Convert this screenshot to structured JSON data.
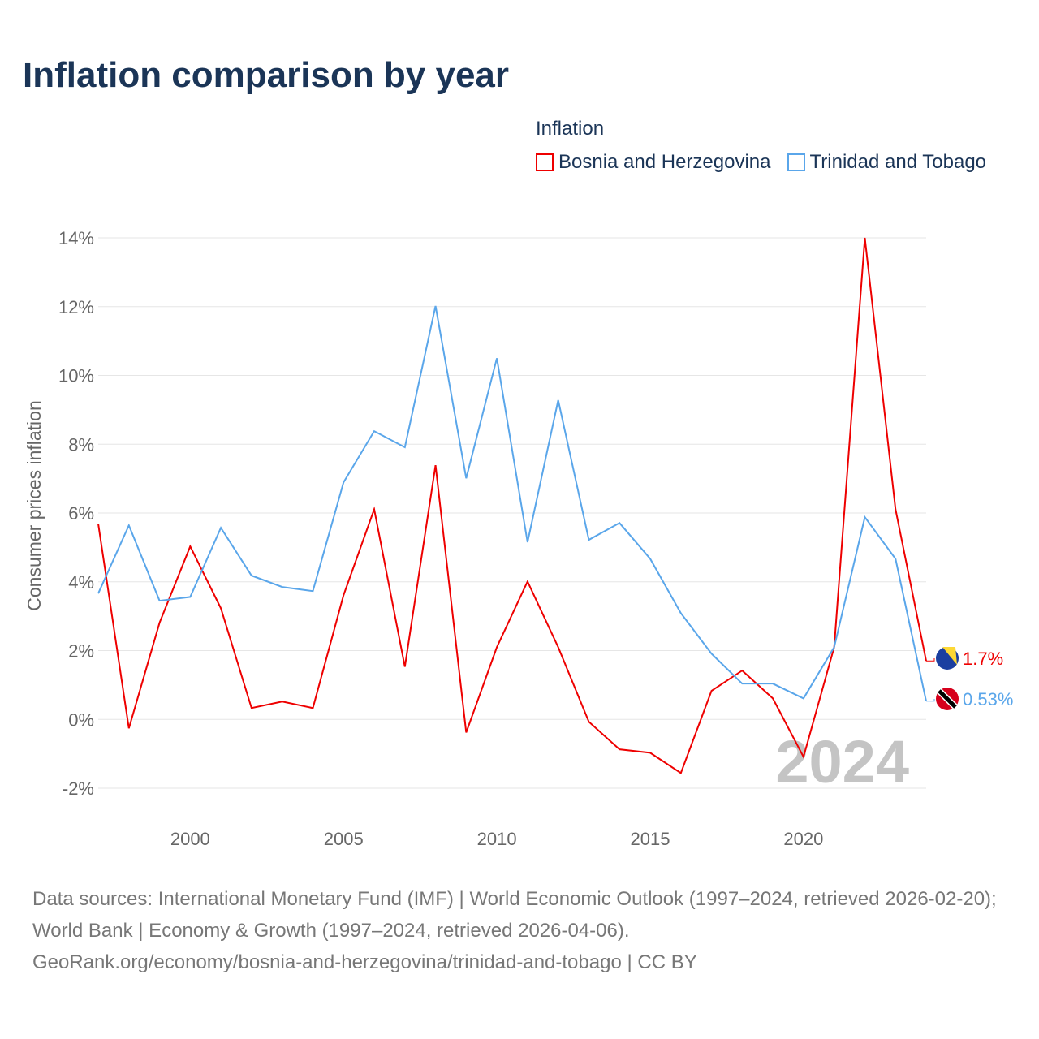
{
  "title": "Inflation comparison by year",
  "legend_title": "Inflation",
  "footer": {
    "sources": "Data sources: International Monetary Fund (IMF) | World Economic Outlook (1997–2024, retrieved 2026-02-20); World Bank | Economy & Growth (1997–2024, retrieved 2026-04-06).",
    "credit": "GeoRank.org/economy/bosnia-and-herzegovina/trinidad-and-tobago | CC BY"
  },
  "chart_data": {
    "type": "line",
    "title": "Inflation comparison by year",
    "xlabel": "",
    "ylabel": "Consumer prices inflation",
    "xlim": [
      1997,
      2024
    ],
    "ylim": [
      -2,
      14
    ],
    "x_ticks": [
      2000,
      2005,
      2010,
      2015,
      2020
    ],
    "y_ticks": [
      -2,
      0,
      2,
      4,
      6,
      8,
      10,
      12,
      14
    ],
    "y_tick_labels": [
      "-2%",
      "0%",
      "2%",
      "4%",
      "6%",
      "8%",
      "10%",
      "12%",
      "14%"
    ],
    "grid": true,
    "legend": "top-right",
    "year_watermark": "2024",
    "x": [
      1997,
      1998,
      1999,
      2000,
      2001,
      2002,
      2003,
      2004,
      2005,
      2006,
      2007,
      2008,
      2009,
      2010,
      2011,
      2012,
      2013,
      2014,
      2015,
      2016,
      2017,
      2018,
      2019,
      2020,
      2021,
      2022,
      2023,
      2024
    ],
    "series": [
      {
        "name": "Bosnia and Herzegovina",
        "color": "#ee0000",
        "end_label": "1.7%",
        "values": [
          5.69,
          -0.26,
          2.81,
          5.03,
          3.23,
          0.33,
          0.52,
          0.33,
          3.61,
          6.11,
          1.53,
          7.39,
          -0.38,
          2.1,
          4.01,
          2.1,
          -0.07,
          -0.87,
          -0.97,
          -1.56,
          0.83,
          1.42,
          0.61,
          -1.09,
          2.1,
          14.0,
          6.11,
          1.7
        ]
      },
      {
        "name": "Trinidad and Tobago",
        "color": "#5aa6ea",
        "end_label": "0.53%",
        "values": [
          3.66,
          5.64,
          3.45,
          3.56,
          5.57,
          4.18,
          3.85,
          3.73,
          6.89,
          8.38,
          7.91,
          12.02,
          7.01,
          10.5,
          5.15,
          9.28,
          5.22,
          5.71,
          4.67,
          3.09,
          1.91,
          1.04,
          1.04,
          0.61,
          2.1,
          5.88,
          4.67,
          0.53
        ]
      }
    ]
  }
}
